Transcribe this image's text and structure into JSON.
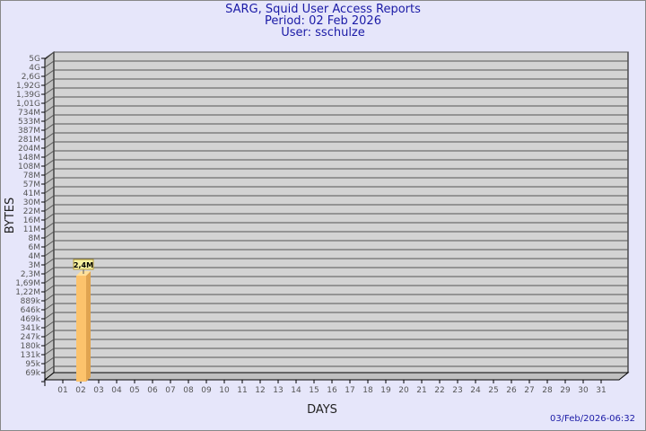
{
  "header": {
    "title": "SARG, Squid User Access Reports",
    "period": "Period: 02 Feb 2026",
    "user": "User: sschulze"
  },
  "timestamp": "03/Feb/2026-06:32",
  "chart_data": {
    "type": "bar",
    "title": "SARG, Squid User Access Reports",
    "xlabel": "DAYS",
    "ylabel": "BYTES",
    "y_scale": "log",
    "y_ticks": [
      "5G",
      "4G",
      "2,6G",
      "1,92G",
      "1,39G",
      "1,01G",
      "734M",
      "533M",
      "387M",
      "281M",
      "204M",
      "148M",
      "108M",
      "78M",
      "57M",
      "41M",
      "30M",
      "22M",
      "16M",
      "11M",
      "8M",
      "6M",
      "4M",
      "3M",
      "2,3M",
      "1,69M",
      "1,22M",
      "889k",
      "646k",
      "469k",
      "341k",
      "247k",
      "180k",
      "131k",
      "95k",
      "69k"
    ],
    "categories": [
      "01",
      "02",
      "03",
      "04",
      "05",
      "06",
      "07",
      "08",
      "09",
      "10",
      "11",
      "12",
      "13",
      "14",
      "15",
      "16",
      "17",
      "18",
      "19",
      "20",
      "21",
      "22",
      "23",
      "24",
      "25",
      "26",
      "27",
      "28",
      "29",
      "30",
      "31"
    ],
    "bars": [
      {
        "day": "02",
        "value": 2400000,
        "label": "2,4M"
      }
    ],
    "grid": true,
    "colors": {
      "background": "#e6e6fa",
      "plot": "#d3d3d3",
      "bar": "#fcc36c",
      "bar_side": "#e0a450",
      "bar_top": "#ffe09a",
      "title": "#1a1aa6"
    }
  }
}
